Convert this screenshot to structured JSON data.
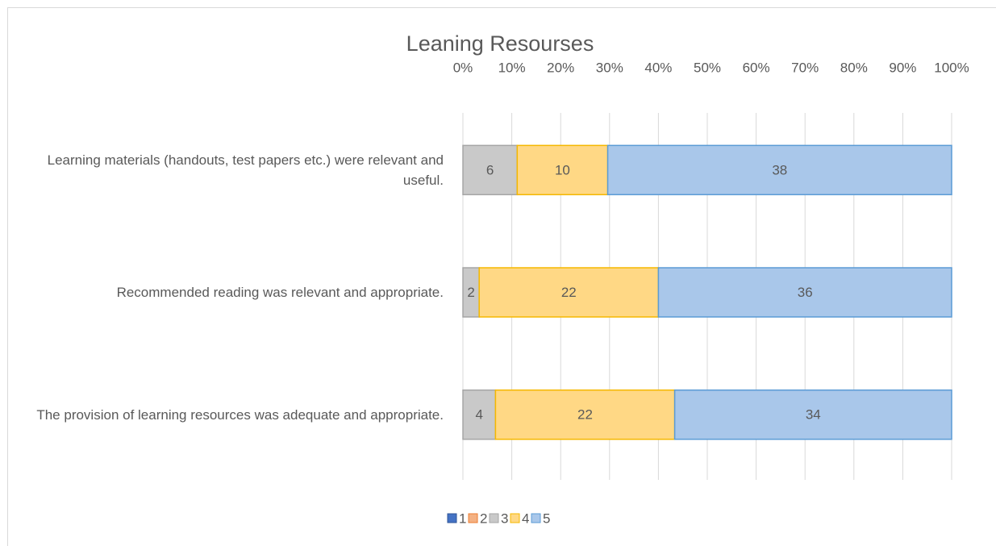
{
  "chart_data": {
    "type": "bar",
    "orientation": "horizontal",
    "stacked": "percent",
    "title": "Leaning Resourses",
    "categories": [
      "Learning materials (handouts, test papers etc.) were relevant and useful.",
      "Recommended reading was relevant and appropriate.",
      "The provision of learning resources was adequate and appropriate."
    ],
    "series": [
      {
        "name": "1",
        "color": "#4472c4",
        "border": "#2f5597",
        "values": [
          0,
          0,
          0
        ]
      },
      {
        "name": "2",
        "color": "#f4b183",
        "border": "#ed7d31",
        "values": [
          0,
          0,
          0
        ]
      },
      {
        "name": "3",
        "color": "#c9c9c9",
        "border": "#a5a5a5",
        "values": [
          6,
          2,
          4
        ]
      },
      {
        "name": "4",
        "color": "#ffd885",
        "border": "#f5b800",
        "values": [
          10,
          22,
          22
        ]
      },
      {
        "name": "5",
        "color": "#a9c7ea",
        "border": "#5b9bd5",
        "values": [
          38,
          36,
          34
        ]
      }
    ],
    "xlim": [
      0,
      100
    ],
    "xticks": [
      {
        "value": 0,
        "label": "0%"
      },
      {
        "value": 10,
        "label": "10%"
      },
      {
        "value": 20,
        "label": "20%"
      },
      {
        "value": 30,
        "label": "30%"
      },
      {
        "value": 40,
        "label": "40%"
      },
      {
        "value": 50,
        "label": "50%"
      },
      {
        "value": 60,
        "label": "60%"
      },
      {
        "value": 70,
        "label": "70%"
      },
      {
        "value": 80,
        "label": "80%"
      },
      {
        "value": 90,
        "label": "90%"
      },
      {
        "value": 100,
        "label": "100%"
      }
    ],
    "grid": true,
    "legend": "bottom"
  }
}
